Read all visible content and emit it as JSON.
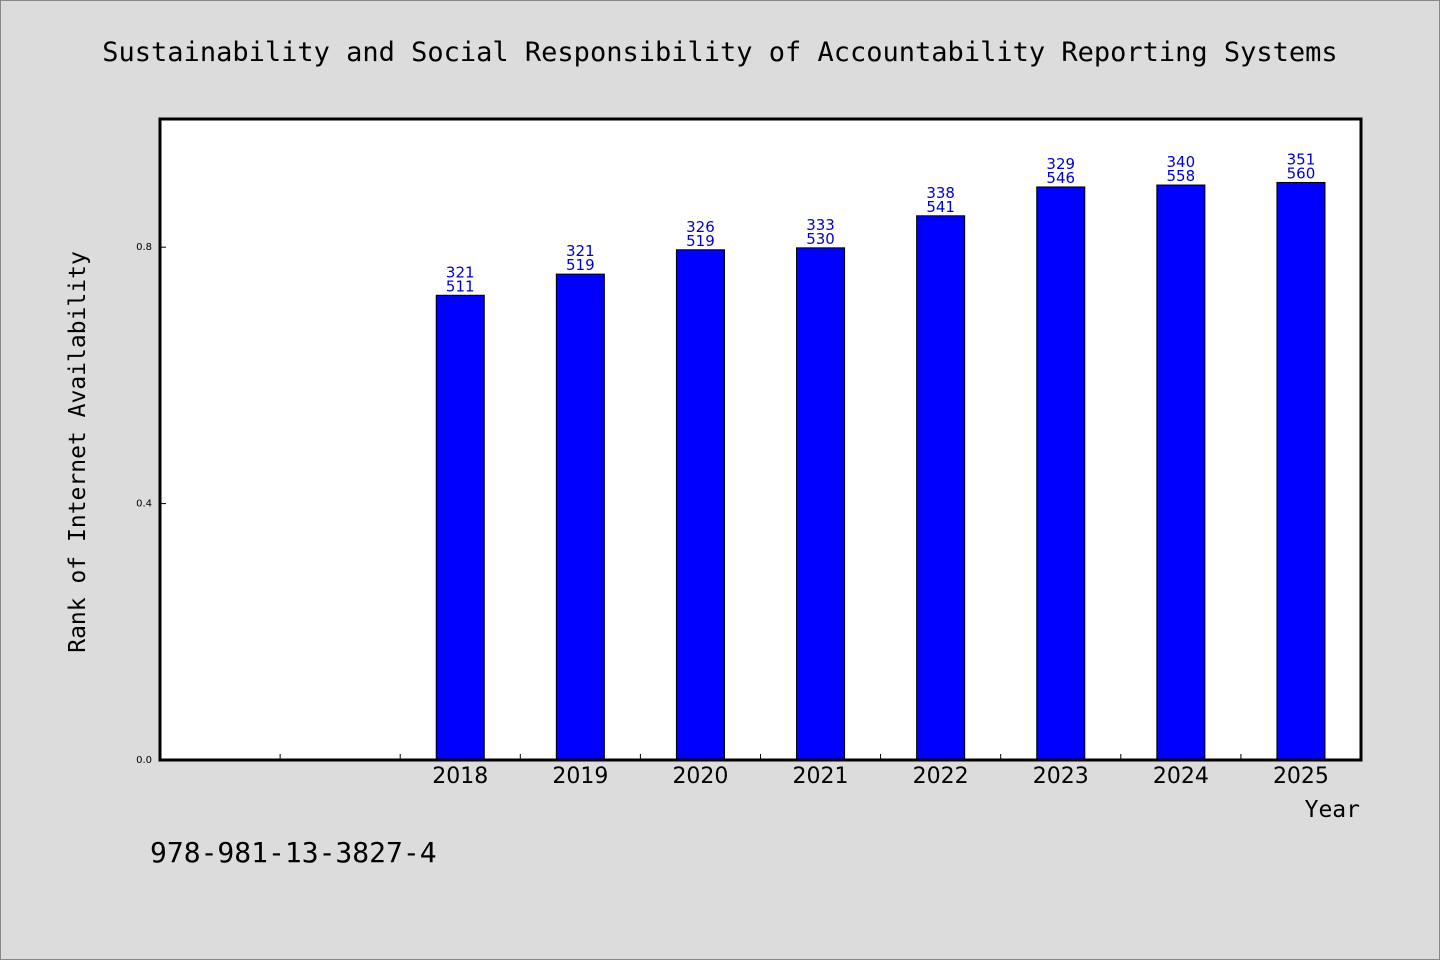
{
  "chart_data": {
    "type": "bar",
    "title": "Sustainability and Social Responsibility of Accountability Reporting Systems",
    "xlabel": "Year",
    "ylabel": "Rank of Internet Availability",
    "categories": [
      "2018",
      "2019",
      "2020",
      "2021",
      "2022",
      "2023",
      "2024",
      "2025"
    ],
    "values": [
      0.725,
      0.758,
      0.796,
      0.799,
      0.849,
      0.894,
      0.897,
      0.901
    ],
    "data_labels_top": [
      "321",
      "321",
      "326",
      "333",
      "338",
      "329",
      "340",
      "351"
    ],
    "data_labels_bottom": [
      "511",
      "519",
      "519",
      "530",
      "541",
      "546",
      "558",
      "560"
    ],
    "yticks": [
      "0.0",
      "0.4",
      "0.8"
    ],
    "ytick_values": [
      0.0,
      0.4,
      0.8
    ],
    "ylim": [
      0,
      1.0
    ],
    "x_slots": 10,
    "first_category_slot": 2,
    "grid": false,
    "legend": "none",
    "bar_color": "#0000ff",
    "label_color": "#0000cc"
  },
  "footer_text": "978-981-13-3827-4"
}
